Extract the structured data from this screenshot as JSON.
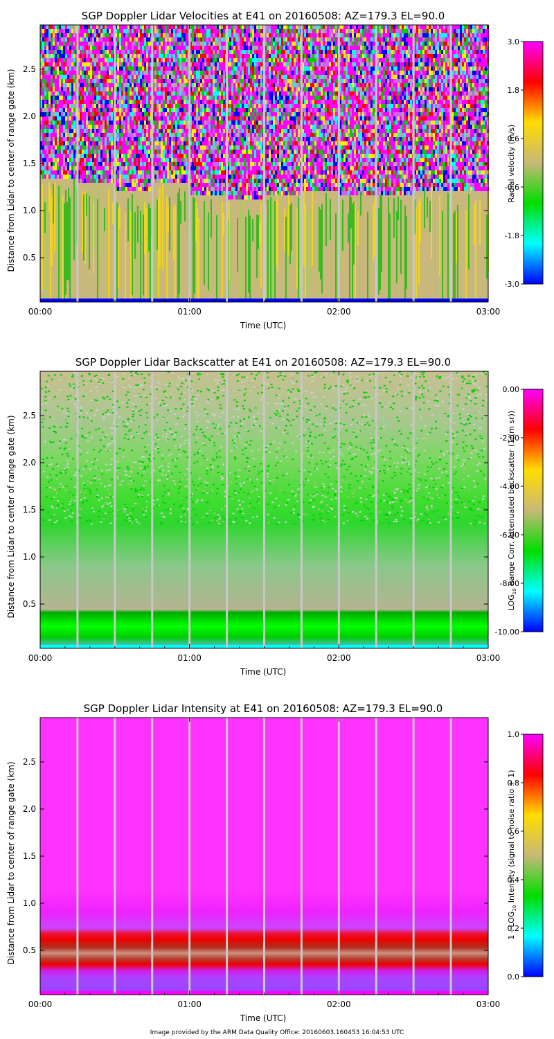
{
  "footer": "Image provided by the ARM Data Quality Office: 20160603.160453 16:04:53 UTC",
  "shared_axes": {
    "xlabel": "Time (UTC)",
    "ylabel": "Distance from Lidar to center of range gate (km)",
    "x_ticks": [
      "00:00",
      "01:00",
      "02:00",
      "03:00"
    ],
    "x_range_hours": [
      0,
      3
    ],
    "y_ticks": [
      "0.5",
      "1.0",
      "1.5",
      "2.0",
      "2.5"
    ],
    "y_tick_values": [
      0.5,
      1.0,
      1.5,
      2.0,
      2.5
    ],
    "y_range_km": [
      0.03,
      2.97
    ],
    "gap_times_hours": [
      0.25,
      0.5,
      0.75,
      1.0,
      1.25,
      1.5,
      1.75,
      2.0,
      2.25,
      2.5,
      2.75
    ]
  },
  "chart_data": [
    {
      "type": "heatmap",
      "title": "SGP Doppler Lidar Velocities at E41 on 20160508: AZ=179.3 EL=90.0",
      "xlabel": "Time (UTC)",
      "ylabel": "Distance from Lidar to center of range gate (km)",
      "colorbar_label": "Radial velocity (m/s)",
      "colorbar_ticks": [
        "3.0",
        "1.8",
        "0.6",
        "-0.6",
        "-1.8",
        "-3.0"
      ],
      "colorbar_range": [
        -3.0,
        3.0
      ],
      "colormap": [
        "#0000ff",
        "#00ffff",
        "#00dd00",
        "#c8b878",
        "#ffdd00",
        "#ff0000",
        "#ff00ff"
      ],
      "noise_top_boundary_km": [
        1.35,
        1.3,
        1.25,
        1.3,
        1.2,
        1.15,
        1.2,
        1.25,
        1.2,
        1.2,
        1.25,
        1.25
      ],
      "bottom_band_color": "#0000ff"
    },
    {
      "type": "heatmap",
      "title": "SGP Doppler Lidar Backscatter at E41 on 20160508: AZ=179.3 EL=90.0",
      "xlabel": "Time (UTC)",
      "ylabel": "Distance from Lidar to center of range gate (km)",
      "colorbar_label_prefix": "LOG",
      "colorbar_label_sub": "10",
      "colorbar_label_rest": " Range Corr. Attenuated backscatter (1/(m sr))",
      "colorbar_ticks": [
        "0.00",
        "-2.00",
        "-4.00",
        "-6.00",
        "-8.00",
        "-10.00"
      ],
      "colorbar_range": [
        -10.0,
        0.0
      ],
      "colormap": [
        "#0000ff",
        "#00ffff",
        "#00dd00",
        "#c8b878",
        "#ffdd00",
        "#ff0000",
        "#ff00ff"
      ],
      "bottom_band_color": "#00ffff"
    },
    {
      "type": "heatmap",
      "title": "SGP Doppler Lidar Intensity at E41 on 20160508: AZ=179.3 EL=90.0",
      "xlabel": "Time (UTC)",
      "ylabel": "Distance from Lidar to center of range gate (km)",
      "colorbar_label_prefix": "1 - LOG",
      "colorbar_label_sub": "10",
      "colorbar_label_rest": " Intensity (signal to noise ratio + 1)",
      "colorbar_ticks": [
        "1.0",
        "0.8",
        "0.6",
        "0.4",
        "0.2",
        "0.0"
      ],
      "colorbar_range": [
        0.0,
        1.0
      ],
      "colormap": [
        "#0000ff",
        "#00ffff",
        "#00dd00",
        "#c8b878",
        "#ffdd00",
        "#ff0000",
        "#ff00ff"
      ],
      "bottom_band_color": "#ff00ff"
    }
  ]
}
